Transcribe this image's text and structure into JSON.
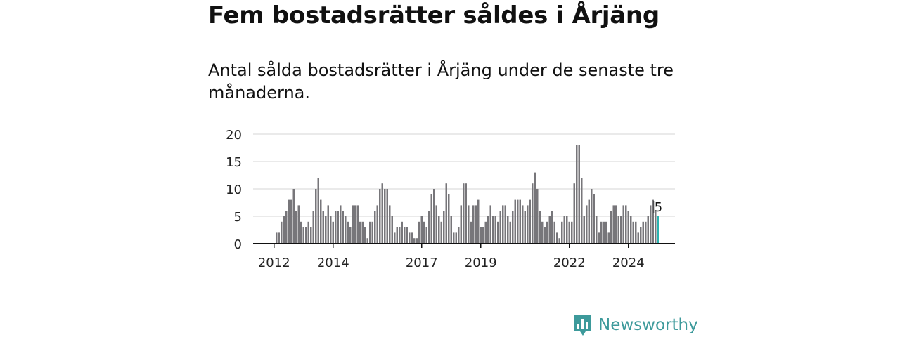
{
  "title": "Fem bostadsrätter såldes i Årjäng",
  "subtitle": "Antal sålda bostadsrätter i Årjäng under de senaste tre månaderna.",
  "brand": "Newsworthy",
  "colors": {
    "bar": "#77767a",
    "highlight": "#2bb3b0",
    "grid": "#d6d6d6",
    "axis": "#111111",
    "brand": "#3d9a9b"
  },
  "chart_data": {
    "type": "bar",
    "ylim": [
      0,
      20
    ],
    "yticks": [
      "0",
      "5",
      "10",
      "15",
      "20"
    ],
    "xticks": [
      {
        "label": "2012",
        "index": 5
      },
      {
        "label": "2014",
        "index": 29
      },
      {
        "label": "2017",
        "index": 65
      },
      {
        "label": "2019",
        "index": 89
      },
      {
        "label": "2022",
        "index": 125
      },
      {
        "label": "2024",
        "index": 149
      }
    ],
    "last_value_label": "5",
    "grid": true,
    "values": [
      0,
      0,
      0,
      0,
      0,
      0,
      2,
      2,
      4,
      5,
      6,
      8,
      8,
      10,
      6,
      7,
      4,
      3,
      3,
      4,
      3,
      6,
      10,
      12,
      8,
      6,
      5,
      7,
      5,
      4,
      6,
      6,
      7,
      6,
      5,
      4,
      3,
      7,
      7,
      7,
      4,
      4,
      3,
      1,
      4,
      4,
      6,
      7,
      10,
      11,
      10,
      10,
      7,
      5,
      2,
      3,
      3,
      4,
      3,
      3,
      2,
      2,
      1,
      1,
      4,
      5,
      4,
      3,
      6,
      9,
      10,
      7,
      5,
      4,
      6,
      11,
      9,
      5,
      2,
      2,
      3,
      7,
      11,
      11,
      7,
      4,
      7,
      7,
      8,
      3,
      3,
      4,
      5,
      7,
      5,
      5,
      4,
      6,
      7,
      7,
      5,
      4,
      6,
      8,
      8,
      8,
      7,
      6,
      7,
      8,
      11,
      13,
      10,
      6,
      4,
      3,
      4,
      5,
      6,
      4,
      2,
      1,
      4,
      5,
      5,
      4,
      4,
      11,
      18,
      18,
      12,
      5,
      7,
      8,
      10,
      9,
      5,
      2,
      4,
      4,
      4,
      2,
      6,
      7,
      7,
      5,
      5,
      7,
      7,
      6,
      5,
      4,
      4,
      2,
      3,
      4,
      4,
      5,
      7,
      8,
      6,
      5
    ]
  }
}
